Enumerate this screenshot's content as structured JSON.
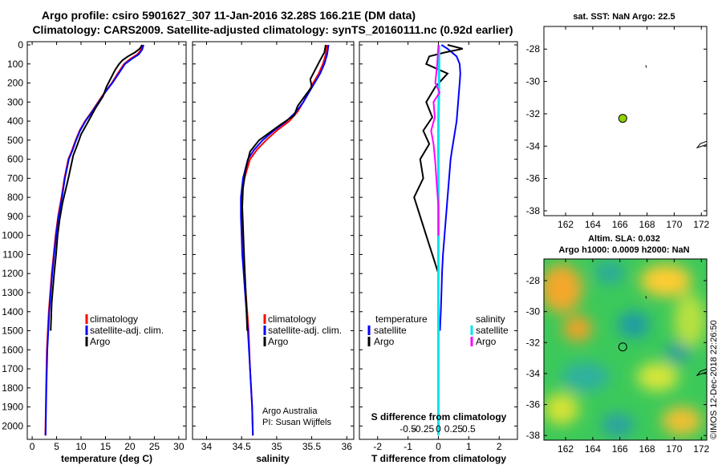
{
  "title": {
    "line1": "Argo profile: csiro 5901627_307 11-Jan-2016 32.28S 166.21E (DM data)",
    "line2": "Climatology: CARS2009. Satellite-adjusted climatology: synTS_20160111.nc (0.92d earlier)"
  },
  "colors": {
    "climatology": "#ff0000",
    "satellite": "#0000ff",
    "argo": "#000000",
    "sat_salinity": "#00e5ee",
    "argo_salinity_diff": "#ff00ff",
    "float_marker": "#8fd400"
  },
  "depth_axis": {
    "ylim": [
      0,
      2070
    ],
    "ticks": [
      0,
      100,
      200,
      300,
      400,
      500,
      600,
      700,
      800,
      900,
      1000,
      1100,
      1200,
      1300,
      1400,
      1500,
      1600,
      1700,
      1800,
      1900,
      2000
    ],
    "tick_labels": [
      "0",
      "100",
      "200",
      "300",
      "400",
      "500",
      "600",
      "700",
      "800",
      "900",
      "1000",
      "1100",
      "1200",
      "1300",
      "1400",
      "1500",
      "1600",
      "1700",
      "1800",
      "1900",
      "2000"
    ]
  },
  "panels": {
    "temperature": {
      "xlabel": "temperature (deg C)",
      "xlim": [
        -1,
        31.5
      ],
      "xticks": [
        0,
        5,
        10,
        15,
        20,
        25,
        30
      ],
      "xtick_labels": [
        "0",
        "5",
        "10",
        "15",
        "20",
        "25",
        "30"
      ],
      "legend": [
        "climatology",
        "satellite-adj. clim.",
        "Argo"
      ]
    },
    "salinity": {
      "xlabel": "salinity",
      "xlim": [
        33.8,
        36.1
      ],
      "xticks": [
        34,
        34.5,
        35,
        35.5,
        36
      ],
      "xtick_labels": [
        "34",
        "34.5",
        "35",
        "35.5",
        "36"
      ],
      "legend": [
        "climatology",
        "satellite-adj. clim.",
        "Argo"
      ],
      "credit_line1": "Argo Australia",
      "credit_line2": "PI: Susan Wijffels"
    },
    "difference": {
      "xlabel": "T difference from climatology",
      "xlim": [
        -2.6,
        2.6
      ],
      "xticks": [
        -2,
        -1,
        0,
        1,
        2
      ],
      "xtick_labels": [
        "-2",
        "-1",
        "0",
        "1",
        "2"
      ],
      "s_title": "S difference from climatology",
      "s_ticks": [
        -0.5,
        -0.25,
        0,
        0.25,
        0.5
      ],
      "s_tick_labels": [
        "-0.5",
        "-0.25",
        "0",
        "0.25",
        "0.5"
      ],
      "legend_temperature": "temperature",
      "legend_salinity": "salinity",
      "legend_satellite": "satellite",
      "legend_argo": "Argo"
    }
  },
  "map_sst": {
    "title": "sat. SST: NaN Argo: 22.5",
    "xlim": [
      160.4,
      172.4
    ],
    "ylim": [
      -38.3,
      -26.6
    ],
    "xticks": [
      162,
      164,
      166,
      168,
      170,
      172
    ],
    "xtick_labels": [
      "162",
      "164",
      "166",
      "168",
      "170",
      "172"
    ],
    "yticks": [
      -28,
      -30,
      -32,
      -34,
      -36,
      -38
    ],
    "ytick_labels": [
      "-28",
      "-30",
      "-32",
      "-34",
      "-36",
      "-38"
    ],
    "float_position": {
      "lon": 166.21,
      "lat": -32.28
    }
  },
  "map_sla": {
    "title1": "Altim. SLA: 0.032",
    "title2": "Argo h1000: 0.0009 h2000: NaN",
    "xlim": [
      160.4,
      172.4
    ],
    "ylim": [
      -38.3,
      -26.6
    ],
    "xticks": [
      162,
      164,
      166,
      168,
      170,
      172
    ],
    "xtick_labels": [
      "162",
      "164",
      "166",
      "168",
      "170",
      "172"
    ],
    "yticks": [
      -28,
      -30,
      -32,
      -34,
      -36,
      -38
    ],
    "ytick_labels": [
      "-28",
      "-30",
      "-32",
      "-34",
      "-36",
      "-38"
    ],
    "float_position": {
      "lon": 166.21,
      "lat": -32.28
    }
  },
  "watermark": "©IMOS 12-Dec-2018 22:26:50",
  "chart_data": [
    {
      "type": "line",
      "name": "temperature profile",
      "xlabel": "temperature (deg C)",
      "ylabel": "",
      "xlim": [
        -1,
        31.5
      ],
      "ylim": [
        0,
        2070
      ],
      "y_inverted": true,
      "series": [
        {
          "name": "climatology",
          "x": [
            22.5,
            22.3,
            21.5,
            20,
            18.8,
            17.5,
            16.3,
            14.8,
            13.5,
            12.2,
            10.8,
            9.7,
            8.9,
            8.2,
            7.4,
            6.6,
            6.0,
            5.3,
            4.8,
            4.4,
            4.0,
            3.7,
            3.4,
            3.2,
            3.0,
            2.85,
            2.7
          ],
          "y": [
            0,
            25,
            50,
            75,
            100,
            150,
            200,
            250,
            300,
            350,
            400,
            450,
            500,
            550,
            600,
            700,
            800,
            900,
            1000,
            1100,
            1200,
            1300,
            1400,
            1500,
            1600,
            1800,
            2050
          ]
        },
        {
          "name": "satellite-adj. clim.",
          "x": [
            22.8,
            22.5,
            21.8,
            20.3,
            19.0,
            17.7,
            16.4,
            14.9,
            13.6,
            12.3,
            10.9,
            9.8,
            9.0,
            8.3,
            7.5,
            6.7,
            6.1,
            5.4,
            4.9,
            4.5,
            4.1,
            3.8,
            3.5,
            3.3,
            3.1,
            2.9,
            2.75
          ],
          "y": [
            0,
            25,
            50,
            75,
            100,
            150,
            200,
            250,
            300,
            350,
            400,
            450,
            500,
            550,
            600,
            700,
            800,
            900,
            1000,
            1100,
            1200,
            1300,
            1400,
            1500,
            1600,
            1800,
            2050
          ]
        },
        {
          "name": "Argo",
          "x": [
            22.5,
            22.0,
            21.0,
            19.6,
            18.5,
            17.8,
            17.0,
            16.6,
            15.2,
            14.5,
            13.0,
            11.5,
            10.0,
            9.3,
            8.4,
            7.4,
            6.2,
            5.6,
            5.2,
            4.9,
            4.5,
            4.0,
            3.8
          ],
          "y": [
            0,
            20,
            40,
            60,
            80,
            100,
            130,
            150,
            220,
            270,
            330,
            400,
            470,
            520,
            580,
            700,
            830,
            920,
            1000,
            1100,
            1200,
            1350,
            1500
          ]
        }
      ]
    },
    {
      "type": "line",
      "name": "salinity profile",
      "xlabel": "salinity",
      "ylabel": "",
      "xlim": [
        33.8,
        36.1
      ],
      "ylim": [
        0,
        2070
      ],
      "y_inverted": true,
      "series": [
        {
          "name": "climatology",
          "x": [
            35.72,
            35.7,
            35.66,
            35.6,
            35.52,
            35.45,
            35.38,
            35.3,
            35.18,
            35.0,
            34.85,
            34.72,
            34.62,
            34.54,
            34.5,
            34.5,
            34.51,
            34.52,
            34.54,
            34.56,
            34.58,
            34.6,
            34.62,
            34.65,
            34.66
          ],
          "y": [
            0,
            50,
            100,
            150,
            200,
            250,
            300,
            350,
            400,
            450,
            500,
            550,
            600,
            700,
            800,
            900,
            1000,
            1100,
            1200,
            1300,
            1400,
            1500,
            1700,
            1900,
            2050
          ]
        },
        {
          "name": "satellite-adj. clim.",
          "x": [
            35.74,
            35.72,
            35.68,
            35.62,
            35.54,
            35.46,
            35.38,
            35.28,
            35.14,
            34.96,
            34.8,
            34.68,
            34.59,
            34.52,
            34.49,
            34.49,
            34.5,
            34.51,
            34.53,
            34.55,
            34.57,
            34.59,
            34.62,
            34.65,
            34.66
          ],
          "y": [
            0,
            50,
            100,
            150,
            200,
            250,
            300,
            350,
            400,
            450,
            500,
            550,
            600,
            700,
            800,
            900,
            1000,
            1100,
            1200,
            1300,
            1400,
            1500,
            1700,
            1900,
            2050
          ]
        },
        {
          "name": "Argo",
          "x": [
            35.7,
            35.68,
            35.62,
            35.55,
            35.48,
            35.5,
            35.4,
            35.3,
            35.25,
            35.05,
            34.9,
            34.75,
            34.62,
            34.56,
            34.52,
            34.51,
            34.52,
            34.53,
            34.54,
            34.56,
            34.58
          ],
          "y": [
            0,
            40,
            80,
            130,
            180,
            220,
            270,
            320,
            370,
            420,
            460,
            500,
            560,
            650,
            750,
            850,
            950,
            1050,
            1150,
            1300,
            1500
          ]
        }
      ]
    },
    {
      "type": "line",
      "name": "difference from climatology",
      "xlabel": "T difference from climatology",
      "xlim": [
        -2.6,
        2.6
      ],
      "ylim": [
        0,
        2070
      ],
      "y_inverted": true,
      "series": [
        {
          "name": "T satellite",
          "x": [
            0.1,
            0.3,
            0.6,
            0.7,
            0.72,
            0.7,
            0.65,
            0.6,
            0.55,
            0.5,
            0.45,
            0.4,
            0.35,
            0.3,
            0.25,
            0.2,
            0.15,
            0.12,
            0.1,
            0.08,
            0.05
          ],
          "y": [
            0,
            20,
            60,
            100,
            150,
            200,
            300,
            400,
            450,
            500,
            550,
            600,
            700,
            800,
            900,
            1000,
            1100,
            1200,
            1300,
            1400,
            1500
          ]
        },
        {
          "name": "T Argo",
          "x": [
            0.3,
            0.8,
            0.2,
            -0.3,
            -0.4,
            0.3,
            -0.1,
            -0.4,
            -0.2,
            -0.5,
            -0.3,
            -0.6,
            -0.5,
            -0.8,
            -0.6,
            -0.4,
            -0.2,
            0.0
          ],
          "y": [
            0,
            20,
            40,
            60,
            100,
            150,
            220,
            300,
            380,
            450,
            520,
            600,
            700,
            800,
            900,
            1000,
            1100,
            1200
          ]
        },
        {
          "name": "S satellite",
          "x": [
            0.01,
            0.01,
            0.0,
            0.0,
            0.0,
            0.0,
            0.0,
            0.0
          ],
          "y": [
            0,
            200,
            400,
            800,
            1200,
            1600,
            1900,
            2050
          ]
        },
        {
          "name": "S Argo",
          "x": [
            0.0,
            -0.02,
            -0.05,
            0.02,
            -0.08,
            -0.06,
            -0.12,
            -0.08,
            -0.05,
            -0.03,
            0.0,
            0.0
          ],
          "y": [
            0,
            100,
            200,
            250,
            300,
            380,
            450,
            520,
            620,
            720,
            850,
            1000
          ]
        }
      ]
    }
  ]
}
